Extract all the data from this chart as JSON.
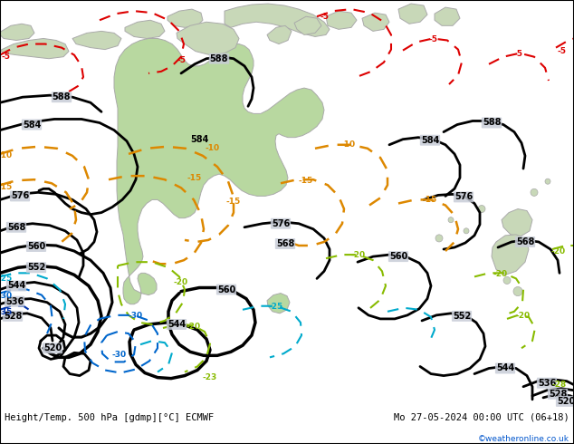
{
  "title_left": "Height/Temp. 500 hPa [gdmp][°C] ECMWF",
  "title_right": "Mo 27-05-2024 00:00 UTC (06+18)",
  "copyright": "©weatheronline.co.uk",
  "ocean_color": "#c8cdd8",
  "land_color": "#c8d8b8",
  "aus_color": "#b8d8a0",
  "white": "#ffffff",
  "black": "#000000",
  "red": "#dd0000",
  "orange": "#dd8800",
  "green": "#88bb00",
  "cyan": "#00aacc",
  "blue": "#0066cc",
  "dark_blue": "#0033aa",
  "copyright_color": "#0055cc"
}
